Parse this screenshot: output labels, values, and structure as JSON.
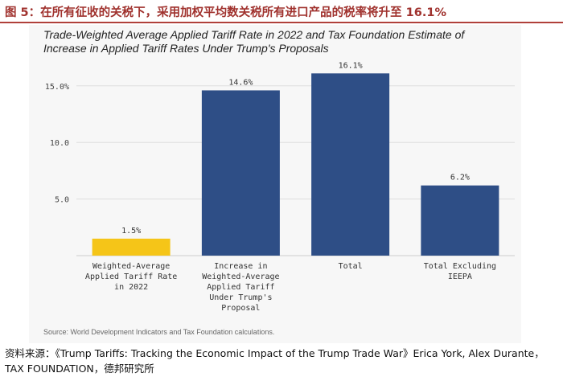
{
  "figure_title": "图 5：在所有征收的关税下，采用加权平均数关税所有进口产品的税率将升至 16.1%",
  "footer": "资料来源：《Trump Tariffs: Tracking the Economic Impact of the Trump Trade War》Erica York, Alex Durante，TAX FOUNDATION，德邦研究所",
  "chart_data": {
    "type": "bar",
    "title": "Trade-Weighted Average Applied Tariff Rate in 2022 and Tax Foundation Estimate of Increase in Applied Tariff Rates Under Trump's Proposals",
    "categories": [
      [
        "Weighted-Average",
        "Applied Tariff Rate",
        "in 2022"
      ],
      [
        "Increase in",
        "Weighted-Average",
        "Applied Tariff",
        "Under Trump's",
        "Proposal"
      ],
      [
        "Total"
      ],
      [
        "Total Excluding",
        "IEEPA"
      ]
    ],
    "values": [
      1.5,
      14.6,
      16.1,
      6.2
    ],
    "value_labels": [
      "1.5%",
      "14.6%",
      "16.1%",
      "6.2%"
    ],
    "colors": [
      "#f5c518",
      "#2e4e86",
      "#2e4e86",
      "#2e4e86"
    ],
    "yticks": [
      5.0,
      10.0,
      15.0
    ],
    "ytick_labels": [
      "5.0",
      "10.0",
      "15.0%"
    ],
    "ylim": [
      0,
      16.5
    ],
    "grid": true,
    "xlabel": "",
    "ylabel": "",
    "source": "Source: World Development Indicators and Tax Foundation calculations."
  }
}
